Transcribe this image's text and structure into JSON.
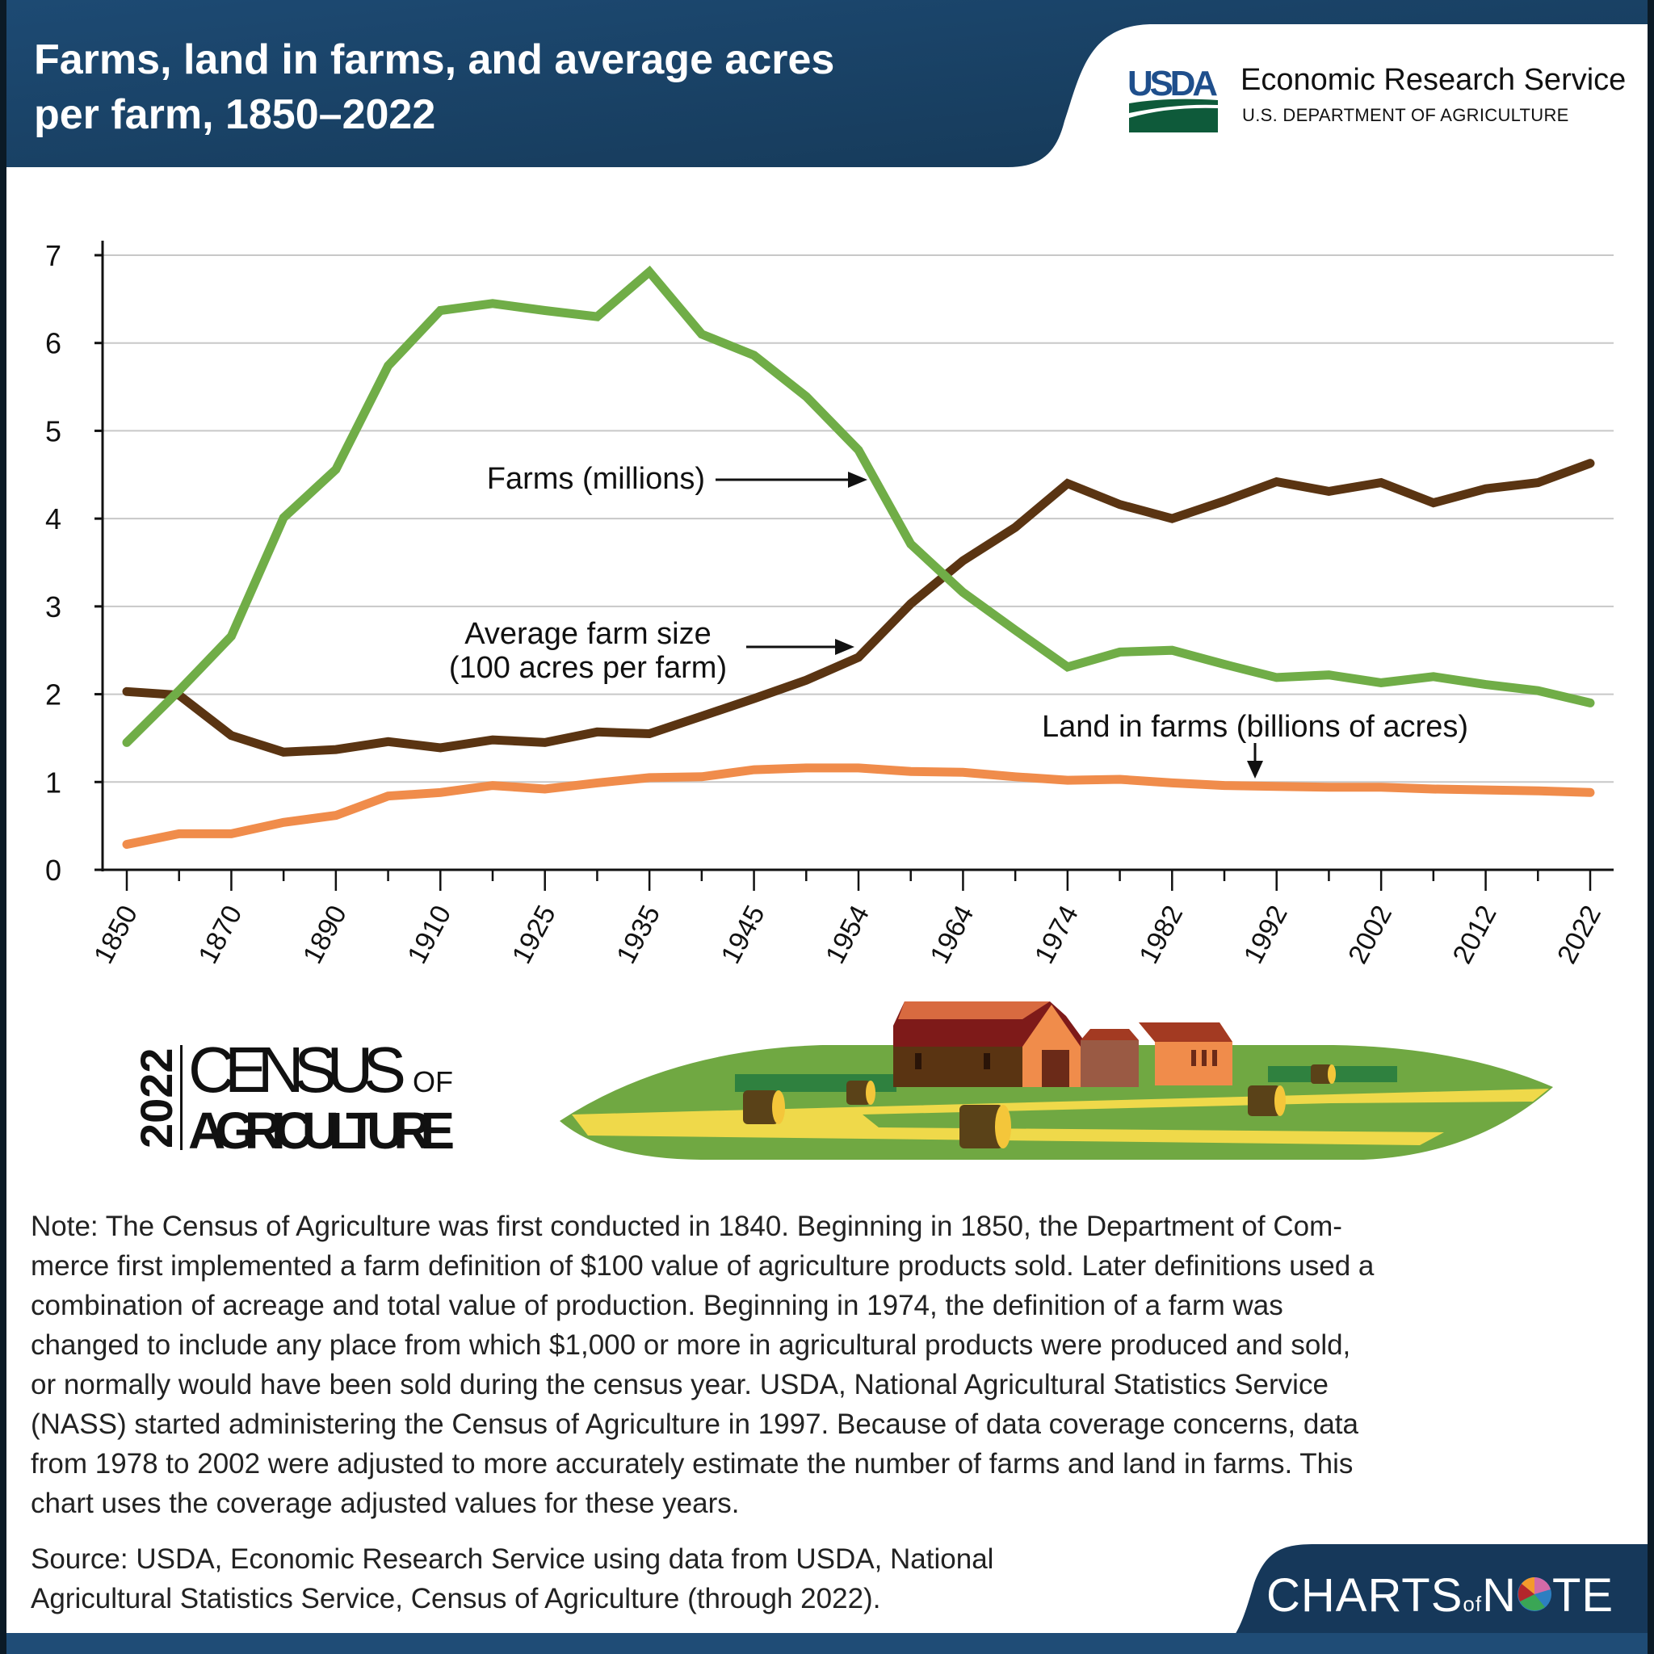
{
  "header": {
    "title_line1": "Farms, land in farms, and average acres",
    "title_line2": "per farm, 1850–2022",
    "logo_text": "USDA",
    "agency": "Economic Research Service",
    "department": "U.S. DEPARTMENT OF AGRICULTURE"
  },
  "colors": {
    "header_bg": "#1b4266",
    "farms": "#70ad47",
    "avg_size": "#5a3412",
    "land": "#f08c4b",
    "grid": "#c8c8c8"
  },
  "chart_data": {
    "type": "line",
    "title": "Farms, land in farms, and average acres per farm, 1850–2022",
    "xlabel": "",
    "ylabel": "",
    "ylim": [
      0,
      7
    ],
    "yticks": [
      "0",
      "1",
      "2",
      "3",
      "4",
      "5",
      "6",
      "7"
    ],
    "grid": true,
    "x": [
      1850,
      1860,
      1870,
      1880,
      1890,
      1900,
      1910,
      1920,
      1925,
      1930,
      1935,
      1940,
      1945,
      1950,
      1954,
      1959,
      1964,
      1969,
      1974,
      1978,
      1982,
      1987,
      1992,
      1997,
      2002,
      2007,
      2012,
      2017,
      2022
    ],
    "xtick_labels": [
      "1850",
      "1870",
      "1890",
      "1910",
      "1925",
      "1935",
      "1945",
      "1954",
      "1964",
      "1974",
      "1982",
      "1992",
      "2002",
      "2012",
      "2022"
    ],
    "series": [
      {
        "name": "Farms (millions)",
        "color_key": "farms",
        "values": [
          1.45,
          2.04,
          2.66,
          4.01,
          4.56,
          5.74,
          6.37,
          6.45,
          6.37,
          6.3,
          6.81,
          6.1,
          5.86,
          5.39,
          4.78,
          3.71,
          3.16,
          2.73,
          2.31,
          2.48,
          2.5,
          2.34,
          2.19,
          2.22,
          2.13,
          2.2,
          2.11,
          2.04,
          1.9
        ]
      },
      {
        "name": "Average farm size (100 acres per farm)",
        "color_key": "avg_size",
        "values": [
          2.03,
          1.99,
          1.53,
          1.34,
          1.37,
          1.46,
          1.39,
          1.48,
          1.45,
          1.57,
          1.55,
          1.75,
          1.95,
          2.16,
          2.42,
          3.03,
          3.52,
          3.9,
          4.4,
          4.16,
          4.0,
          4.2,
          4.42,
          4.31,
          4.41,
          4.18,
          4.34,
          4.41,
          4.63
        ]
      },
      {
        "name": "Land in farms (billions of acres)",
        "color_key": "land",
        "values": [
          0.29,
          0.41,
          0.41,
          0.54,
          0.62,
          0.84,
          0.88,
          0.96,
          0.92,
          0.99,
          1.05,
          1.06,
          1.14,
          1.16,
          1.16,
          1.12,
          1.11,
          1.06,
          1.02,
          1.03,
          0.99,
          0.96,
          0.95,
          0.94,
          0.94,
          0.92,
          0.91,
          0.9,
          0.88
        ]
      }
    ],
    "annotations": {
      "farms": "Farms (millions)",
      "avg_line1": "Average farm size",
      "avg_line2": "(100 acres per farm)",
      "land": "Land in farms (billions of acres)"
    }
  },
  "census_logo": {
    "year": "2022",
    "line1": "CENSUS",
    "of": "OF",
    "line2": "AGRICULTURE"
  },
  "note_lines": [
    "Note: The Census of Agriculture was first conducted in 1840. Beginning in 1850, the Department of Com-",
    "merce first implemented a farm definition of $100 value of agriculture products sold. Later definitions used a",
    "combination of acreage and total value of production. Beginning in 1974, the definition of a farm was",
    "changed to include any place from which $1,000 or more in agricultural products were produced and sold,",
    "or normally would have been sold during the census year. USDA, National Agricultural Statistics Service",
    "(NASS) started administering the Census of Agriculture in 1997. Because of data coverage concerns, data",
    "from 1978 to 2002 were adjusted to more accurately estimate the number of farms and land in farms. This",
    "chart uses the coverage adjusted values for these years."
  ],
  "source_lines": [
    "Source: USDA, Economic Research Service using data from USDA, National",
    "Agricultural Statistics Service, Census of Agriculture (through 2022)."
  ],
  "footer": {
    "brand_a": "CHARTS",
    "brand_of": "of",
    "brand_n": "N",
    "brand_te": "TE"
  }
}
